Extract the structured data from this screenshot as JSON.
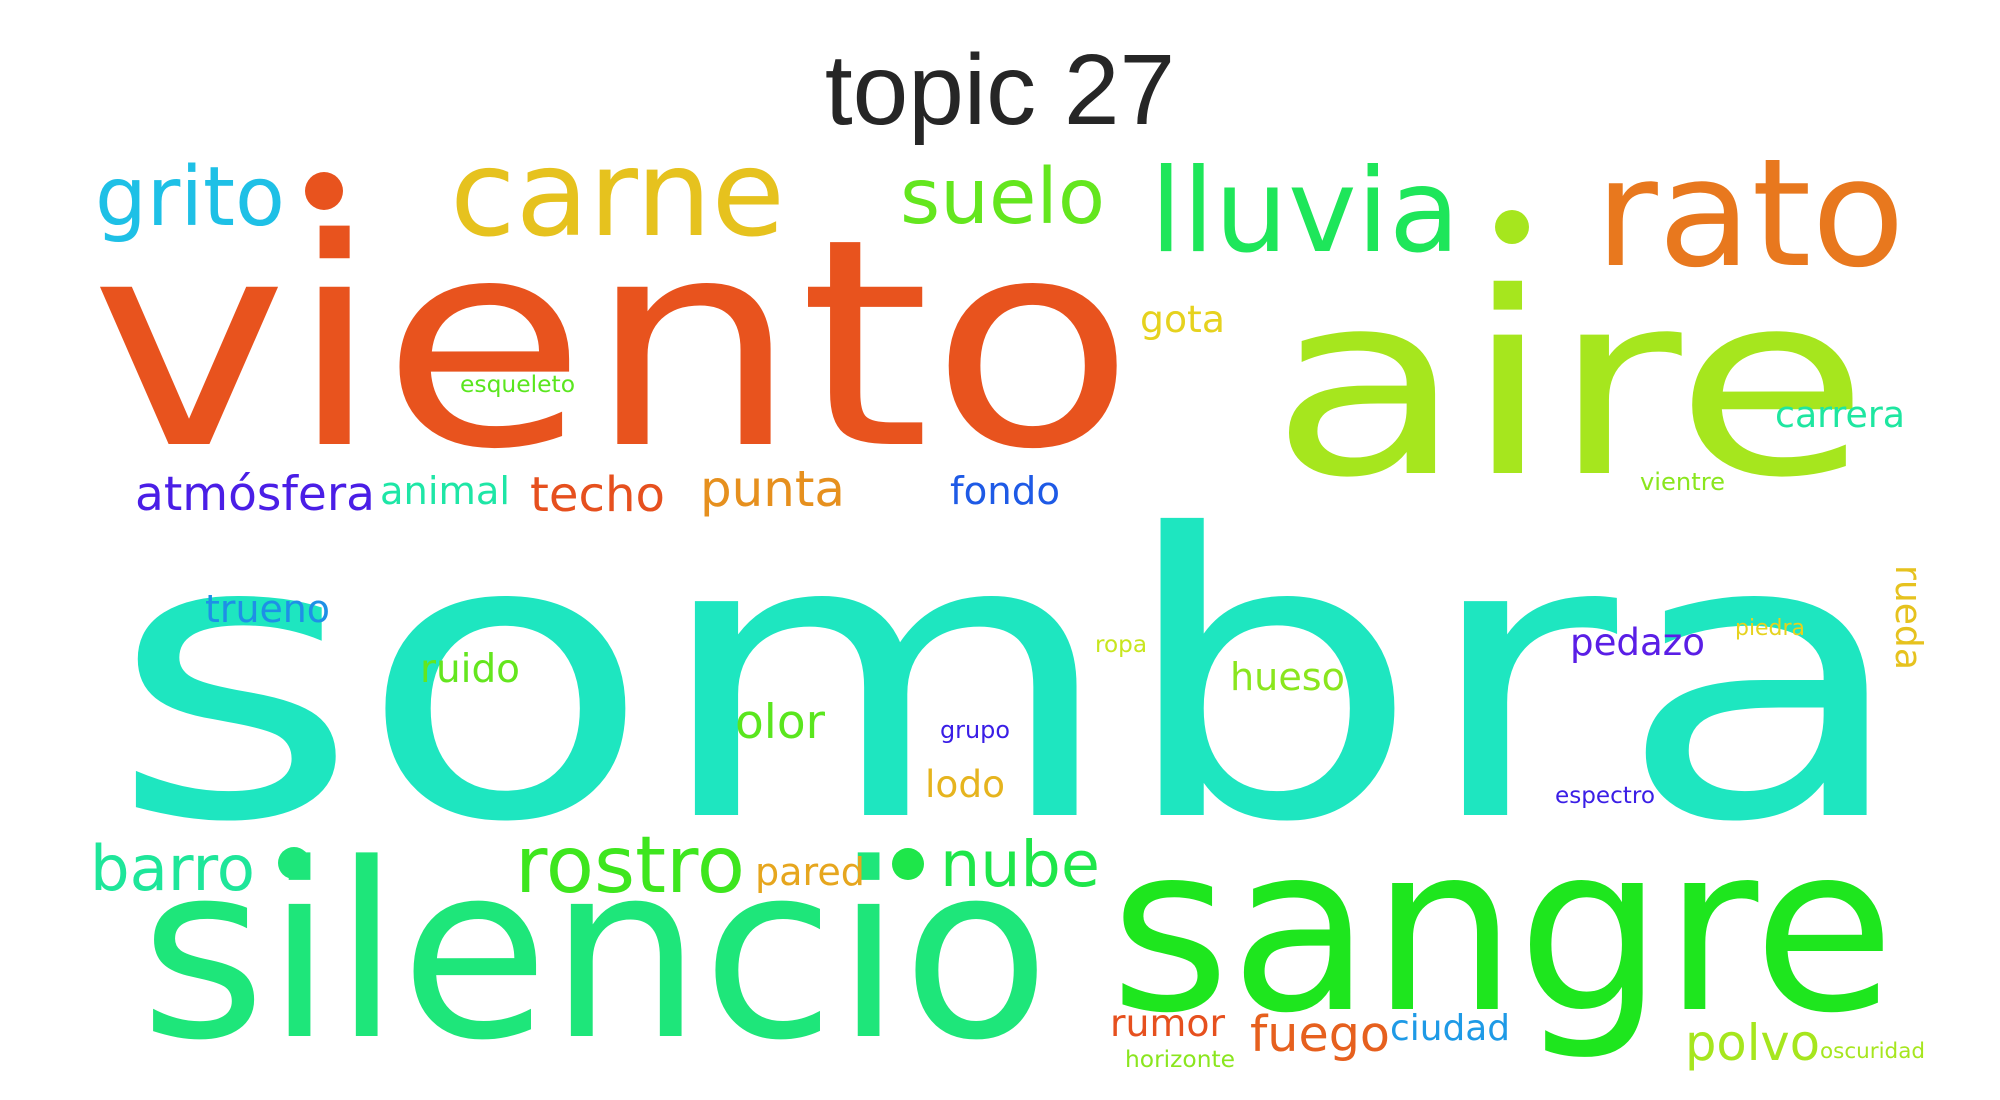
{
  "title": "topic 27",
  "words": [
    {
      "text": "sombra",
      "color": "#1ee6c0"
    },
    {
      "text": "viento",
      "color": "#e8531e"
    },
    {
      "text": "aire",
      "color": "#a6e61e"
    },
    {
      "text": "silencio",
      "color": "#1ee67a"
    },
    {
      "text": "sangre",
      "color": "#1ee61e"
    },
    {
      "text": "rato",
      "color": "#e8781e"
    },
    {
      "text": "carne",
      "color": "#e6c21e"
    },
    {
      "text": "lluvia",
      "color": "#1ee65a"
    },
    {
      "text": "grito",
      "color": "#1ec0e6"
    },
    {
      "text": "suelo",
      "color": "#64e61e"
    },
    {
      "text": "rostro",
      "color": "#3ee61e"
    },
    {
      "text": "nube",
      "color": "#1ee64a"
    },
    {
      "text": "barro",
      "color": "#1ee69a"
    },
    {
      "text": "atmósfera",
      "color": "#4a1ee6"
    },
    {
      "text": "techo",
      "color": "#e6501e"
    },
    {
      "text": "punta",
      "color": "#e6901e"
    },
    {
      "text": "fondo",
      "color": "#1e5ae6"
    },
    {
      "text": "animal",
      "color": "#1ee6a6"
    },
    {
      "text": "olor",
      "color": "#5ae61e"
    },
    {
      "text": "pared",
      "color": "#e6a61e"
    },
    {
      "text": "fuego",
      "color": "#e6601e"
    },
    {
      "text": "polvo",
      "color": "#a6e61e"
    },
    {
      "text": "carrera",
      "color": "#1ee6a0"
    },
    {
      "text": "trueno",
      "color": "#1e90e6"
    },
    {
      "text": "ruido",
      "color": "#64e61e"
    },
    {
      "text": "hueso",
      "color": "#8ae61e"
    },
    {
      "text": "pedazo",
      "color": "#5a1ee6"
    },
    {
      "text": "lodo",
      "color": "#e6b41e"
    },
    {
      "text": "rumor",
      "color": "#e6501e"
    },
    {
      "text": "ciudad",
      "color": "#1e9ae6"
    },
    {
      "text": "gota",
      "color": "#e6d21e"
    },
    {
      "text": "rueda",
      "color": "#e6c21e"
    },
    {
      "text": "esqueleto",
      "color": "#5ae61e"
    },
    {
      "text": "vientre",
      "color": "#8ae61e"
    },
    {
      "text": "piedra",
      "color": "#e6d21e"
    },
    {
      "text": "ropa",
      "color": "#c8e61e"
    },
    {
      "text": "grupo",
      "color": "#3a1ee6"
    },
    {
      "text": "espectro",
      "color": "#3a1ee6"
    },
    {
      "text": "horizonte",
      "color": "#8ae61e"
    },
    {
      "text": "oscuridad",
      "color": "#a6e61e"
    }
  ],
  "dots": [
    {
      "color": "#e8531e"
    },
    {
      "color": "#a6e61e"
    },
    {
      "color": "#1ee67a"
    },
    {
      "color": "#1ee64a"
    }
  ]
}
